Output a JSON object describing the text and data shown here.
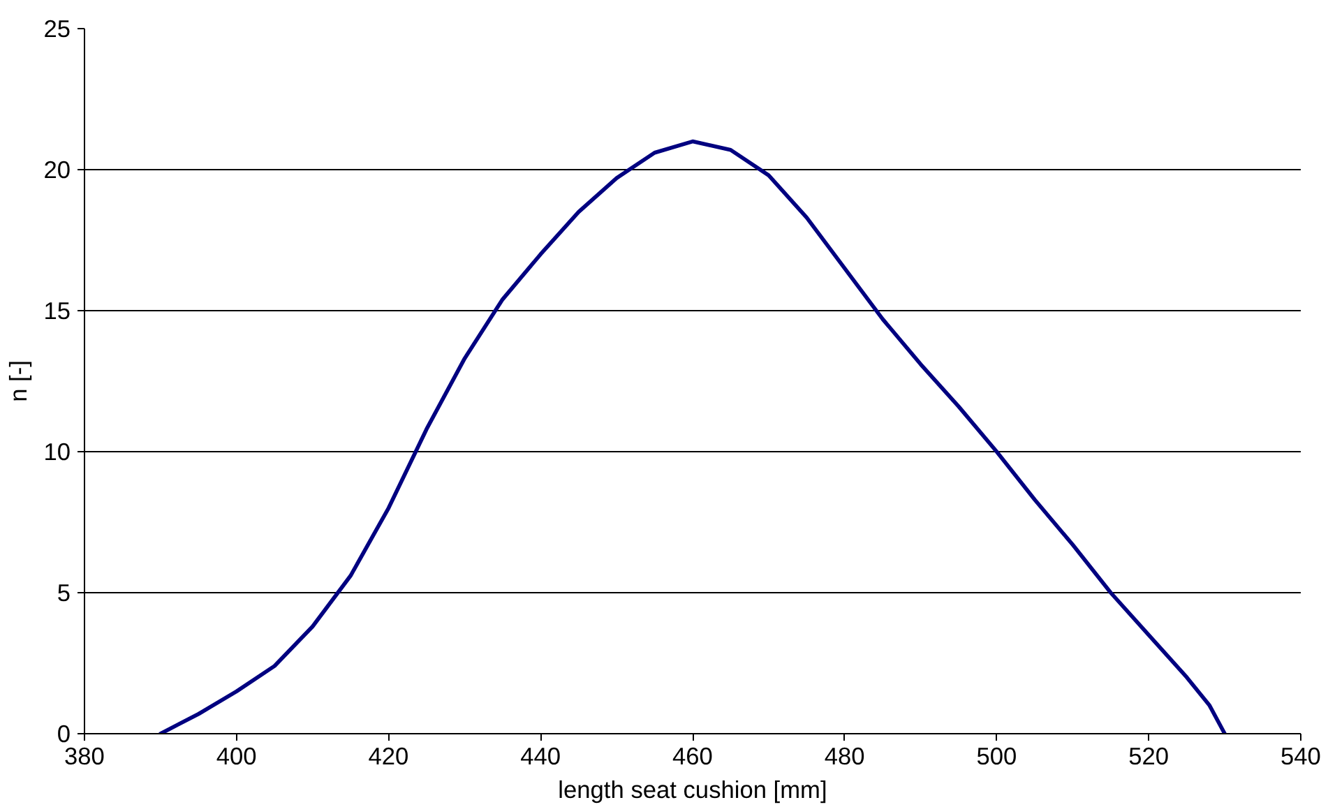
{
  "chart_data": {
    "type": "line",
    "xlabel": "length seat cushion [mm]",
    "ylabel": "n [-]",
    "x": [
      390,
      395,
      400,
      405,
      410,
      415,
      420,
      425,
      430,
      435,
      440,
      445,
      450,
      455,
      460,
      465,
      470,
      475,
      480,
      485,
      490,
      495,
      500,
      505,
      510,
      515,
      520,
      525,
      528,
      530
    ],
    "series": [
      {
        "color": "#000080",
        "values": [
          0,
          0.7,
          1.5,
          2.4,
          3.8,
          5.6,
          8,
          10.8,
          13.3,
          15.4,
          17,
          18.5,
          19.7,
          20.6,
          21,
          20.7,
          19.8,
          18.3,
          16.5,
          14.7,
          13.1,
          11.6,
          10,
          8.3,
          6.7,
          5,
          3.5,
          2,
          1,
          0
        ]
      }
    ],
    "xlim": [
      380,
      540
    ],
    "xticks": [
      380,
      400,
      420,
      440,
      460,
      480,
      500,
      520,
      540
    ],
    "ylim": [
      0,
      25
    ],
    "yticks": [
      0,
      5,
      10,
      15,
      20,
      25
    ],
    "grid": "y",
    "marker": "none",
    "line_style": "solid"
  }
}
